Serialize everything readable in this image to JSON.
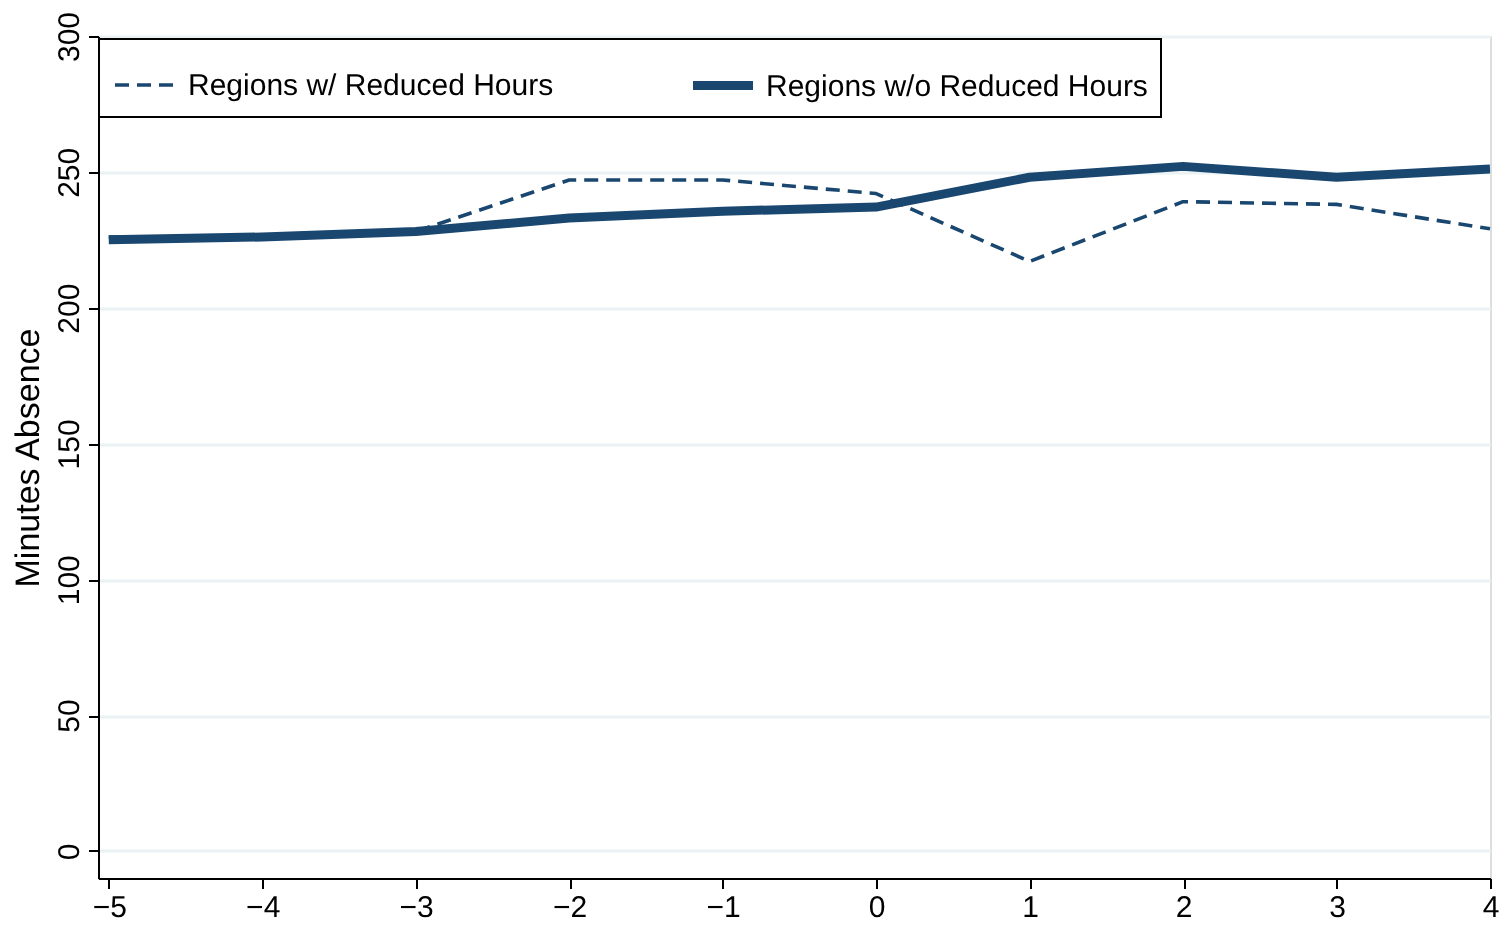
{
  "chart_data": {
    "type": "line",
    "ylabel": "Minutes Absence",
    "x": [
      -5,
      -4,
      -3,
      -2,
      -1,
      0,
      1,
      2,
      3,
      4
    ],
    "xlim": [
      -5.07,
      4
    ],
    "xticks": [
      -5,
      -4,
      -3,
      -2,
      -1,
      0,
      1,
      2,
      3,
      4
    ],
    "ylim": [
      -10,
      300
    ],
    "yticks": [
      0,
      50,
      100,
      150,
      200,
      250,
      300
    ],
    "grid": "y",
    "legend": "top",
    "series": [
      {
        "name": "Regions w/ Reduced Hours",
        "color": "#1a476f",
        "line_style": "dashed",
        "values": [
          226,
          226,
          228,
          247,
          247,
          242,
          217,
          239,
          238,
          229
        ]
      },
      {
        "name": "Regions w/o Reduced Hours",
        "color": "#1a476f",
        "line_style": "solid",
        "values": [
          225,
          226,
          228,
          233,
          235.5,
          237,
          248,
          252,
          248,
          251
        ]
      }
    ]
  }
}
